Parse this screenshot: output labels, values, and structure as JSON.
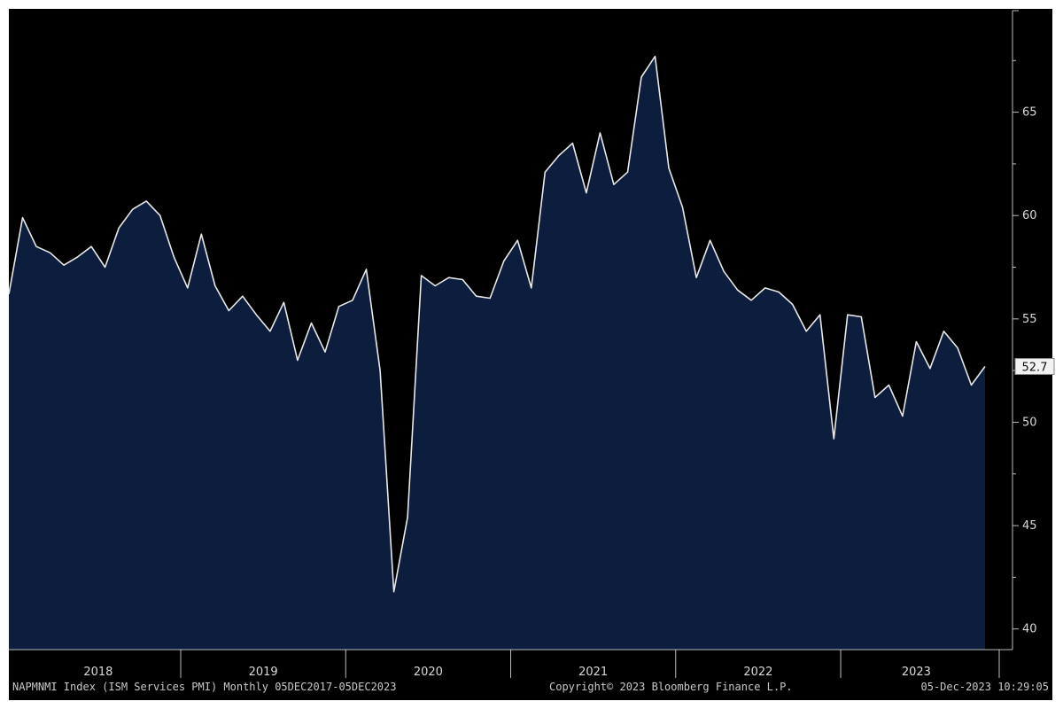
{
  "colors": {
    "background": "#000000",
    "area_fill": "#0c1d3d",
    "line": "#e8e8e8",
    "axis": "#bdbdbd",
    "label_box_bg": "#f2f2f2"
  },
  "footer": {
    "left": "NAPMNMI Index (ISM Services PMI)  Monthly 05DEC2017-05DEC2023",
    "center": "Copyright© 2023 Bloomberg Finance L.P.",
    "right": "05-Dec-2023 10:29:05"
  },
  "chart_data": {
    "type": "area",
    "series": [
      {
        "values": [
          56.2,
          59.9,
          58.5,
          58.2,
          57.6,
          58.0,
          58.5,
          57.5,
          59.4,
          60.3,
          60.7,
          60.0,
          58.0,
          56.5,
          59.1,
          56.6,
          55.4,
          56.1,
          55.2,
          54.4,
          55.8,
          53.0,
          54.8,
          53.4,
          55.6,
          55.9,
          57.4,
          52.5,
          41.8,
          45.4,
          57.1,
          56.6,
          57.0,
          56.9,
          56.1,
          56.0,
          57.8,
          58.8,
          56.5,
          62.1,
          62.9,
          63.5,
          61.1,
          64.0,
          61.5,
          62.1,
          66.7,
          67.7,
          62.3,
          60.4,
          57.0,
          58.8,
          57.3,
          56.4,
          55.9,
          56.5,
          56.3,
          55.7,
          54.4,
          55.2,
          49.2,
          55.2,
          55.1,
          51.2,
          51.8,
          50.3,
          53.9,
          52.6,
          54.4,
          53.6,
          51.8,
          52.7
        ]
      }
    ],
    "x_start": "2017-12",
    "frequency": "monthly",
    "last_value_label": "52.7",
    "x_tick_labels": [
      "2018",
      "2019",
      "2020",
      "2021",
      "2022",
      "2023"
    ],
    "y_ticks": [
      40,
      45,
      50,
      55,
      60,
      65
    ],
    "ylim": [
      39,
      70
    ],
    "grid": false
  }
}
